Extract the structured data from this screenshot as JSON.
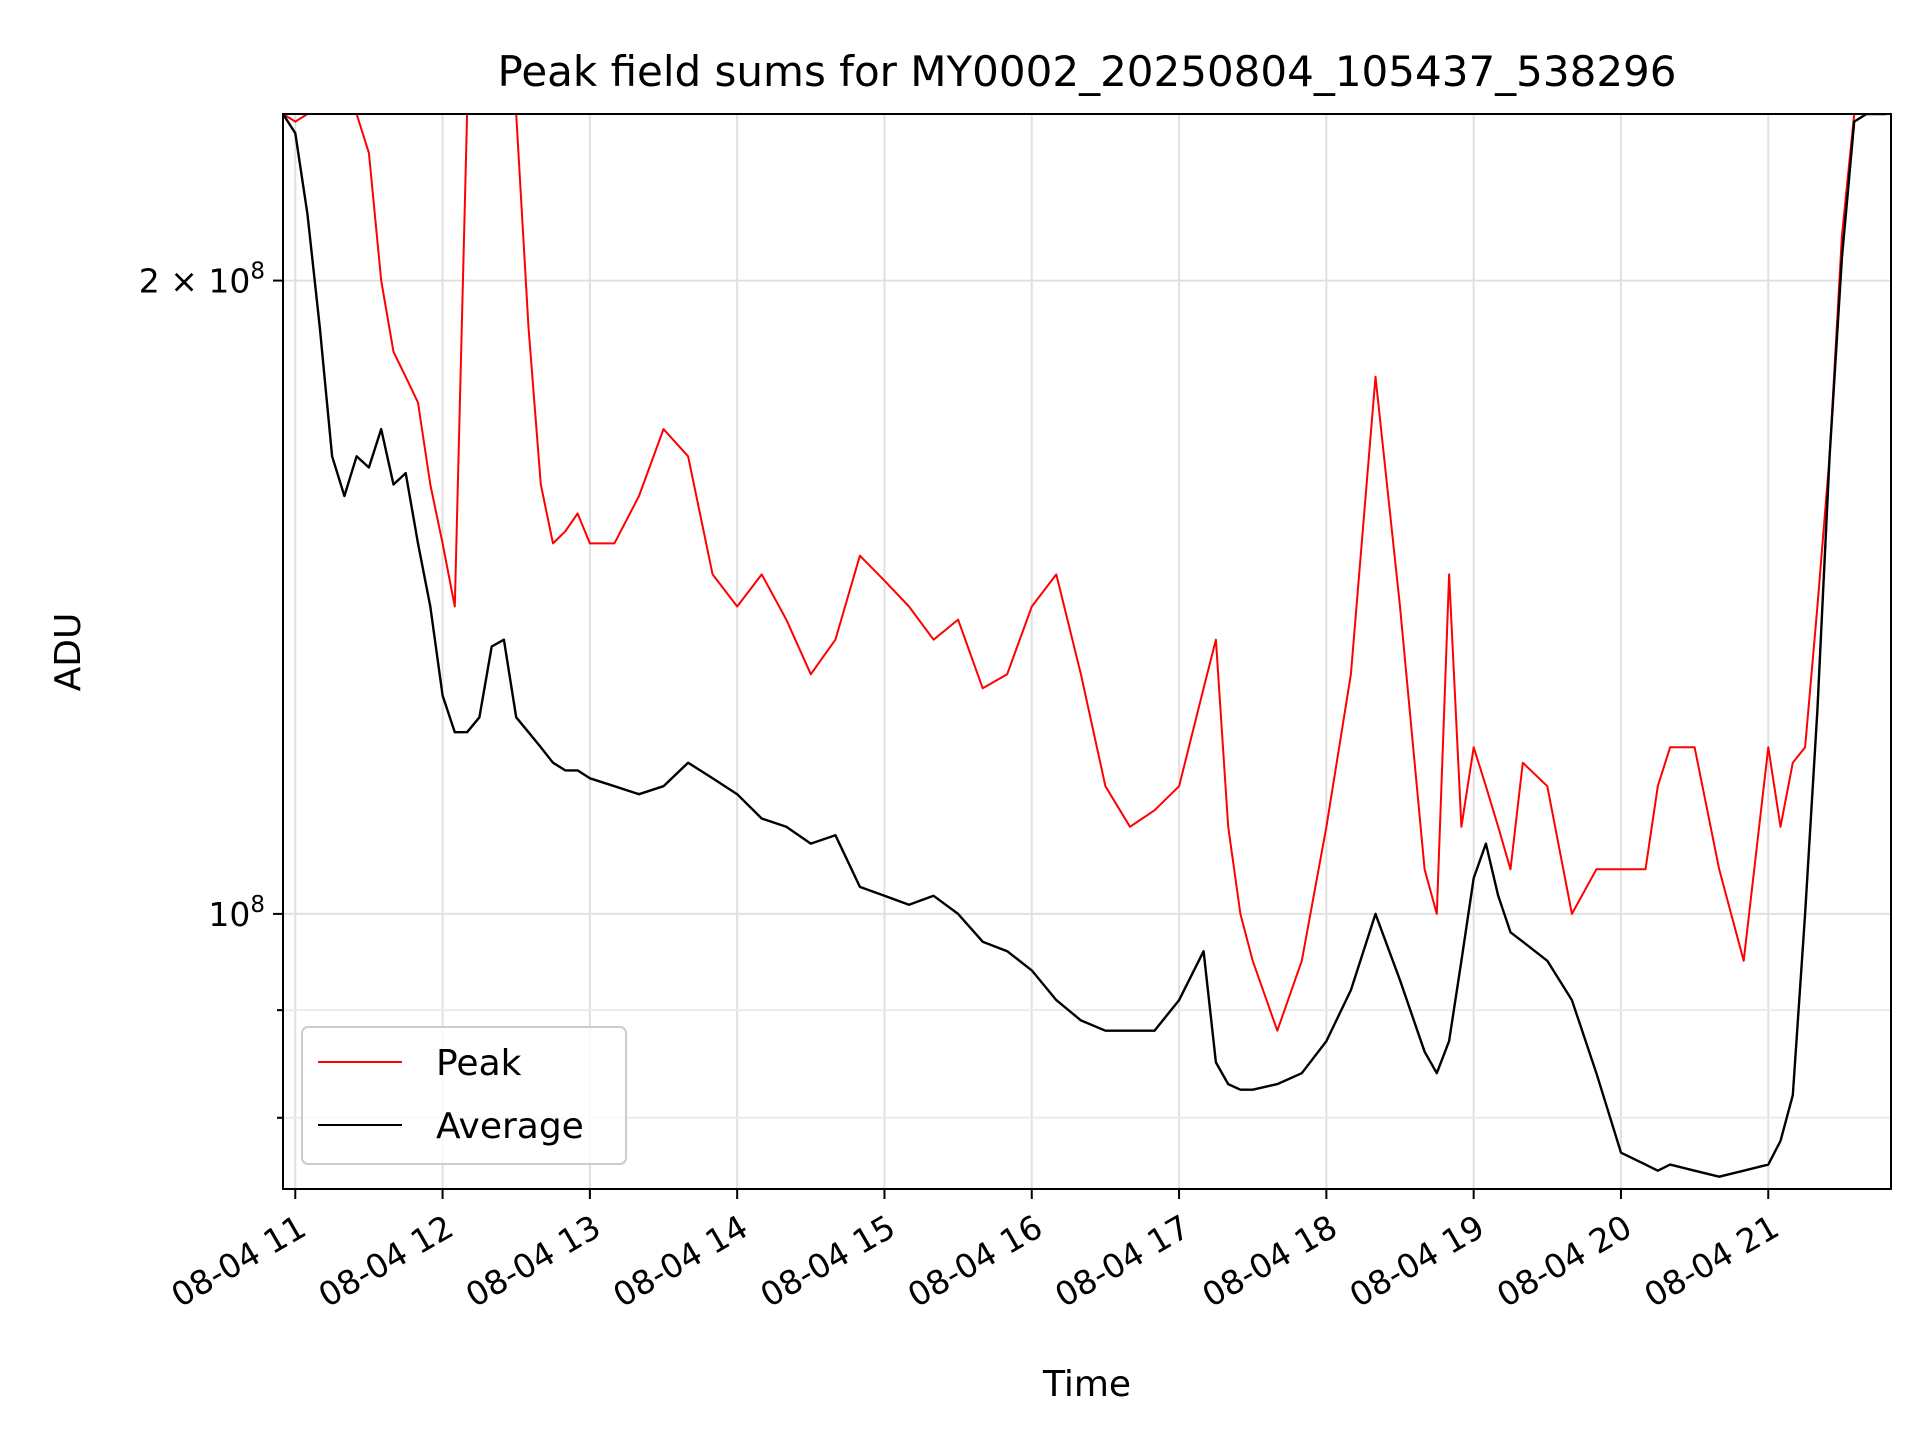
{
  "chart_data": {
    "type": "line",
    "title": "Peak field sums for MY0002_20250804_105437_538296",
    "xlabel": "Time",
    "ylabel": "ADU",
    "yscale": "log",
    "grid": true,
    "legend_position": "lower-left",
    "x_ticks": [
      "08-04 11",
      "08-04 12",
      "08-04 13",
      "08-04 14",
      "08-04 15",
      "08-04 16",
      "08-04 17",
      "08-04 18",
      "08-04 19",
      "08-04 20",
      "08-04 21"
    ],
    "y_ticks": [
      {
        "value": 100000000,
        "base": "10",
        "exp": "8",
        "prefix": ""
      },
      {
        "value": 200000000,
        "base": "10",
        "exp": "8",
        "prefix": "2 × "
      }
    ],
    "xlim": [
      "2025-08-04 10:55",
      "2025-08-04 21:50"
    ],
    "ylim": [
      74000000,
      240000000
    ],
    "series": [
      {
        "name": "Average",
        "color": "#000000",
        "x": [
          "10:55",
          "11:00",
          "11:05",
          "11:10",
          "11:15",
          "11:20",
          "11:25",
          "11:30",
          "11:35",
          "11:40",
          "11:45",
          "11:50",
          "11:55",
          "12:00",
          "12:05",
          "12:10",
          "12:15",
          "12:20",
          "12:25",
          "12:30",
          "12:35",
          "12:40",
          "12:45",
          "12:50",
          "12:55",
          "13:00",
          "13:10",
          "13:20",
          "13:30",
          "13:40",
          "13:50",
          "14:00",
          "14:10",
          "14:20",
          "14:30",
          "14:40",
          "14:50",
          "15:00",
          "15:10",
          "15:20",
          "15:30",
          "15:40",
          "15:50",
          "16:00",
          "16:10",
          "16:20",
          "16:30",
          "16:40",
          "16:50",
          "17:00",
          "17:10",
          "17:15",
          "17:20",
          "17:25",
          "17:30",
          "17:40",
          "17:50",
          "18:00",
          "18:10",
          "18:20",
          "18:30",
          "18:40",
          "18:45",
          "18:50",
          "18:55",
          "19:00",
          "19:05",
          "19:10",
          "19:15",
          "19:20",
          "19:30",
          "19:40",
          "19:50",
          "20:00",
          "20:10",
          "20:15",
          "20:20",
          "20:30",
          "20:40",
          "20:50",
          "21:00",
          "21:05",
          "21:10",
          "21:15",
          "21:20",
          "21:25",
          "21:30",
          "21:35",
          "21:40",
          "21:45",
          "21:48"
        ],
        "y": [
          240000000,
          235000000,
          215000000,
          190000000,
          165000000,
          158000000,
          165000000,
          163000000,
          170000000,
          160000000,
          162000000,
          150000000,
          140000000,
          127000000,
          122000000,
          122000000,
          124000000,
          134000000,
          135000000,
          124000000,
          122000000,
          120000000,
          118000000,
          117000000,
          117000000,
          116000000,
          115000000,
          114000000,
          115000000,
          118000000,
          116000000,
          114000000,
          111000000,
          110000000,
          108000000,
          109000000,
          103000000,
          102000000,
          101000000,
          102000000,
          100000000,
          97000000,
          96000000,
          94000000,
          91000000,
          89000000,
          88000000,
          88000000,
          88000000,
          91000000,
          96000000,
          85000000,
          83000000,
          82500000,
          82500000,
          83000000,
          84000000,
          87000000,
          92000000,
          100000000,
          93000000,
          86000000,
          84000000,
          87000000,
          95000000,
          104000000,
          108000000,
          102000000,
          98000000,
          97000000,
          95000000,
          91000000,
          84000000,
          77000000,
          76000000,
          75500000,
          76000000,
          75500000,
          75000000,
          75500000,
          76000000,
          78000000,
          82000000,
          100000000,
          125000000,
          165000000,
          205000000,
          238000000,
          240000000,
          240000000,
          240000000
        ]
      },
      {
        "name": "Peak",
        "color": "#ff0000",
        "x": [
          "10:55",
          "11:00",
          "11:05",
          "11:10",
          "11:15",
          "11:20",
          "11:25",
          "11:30",
          "11:35",
          "11:40",
          "11:45",
          "11:50",
          "11:55",
          "12:00",
          "12:05",
          "12:10",
          "12:15",
          "12:20",
          "12:25",
          "12:30",
          "12:35",
          "12:40",
          "12:45",
          "12:50",
          "12:55",
          "13:00",
          "13:10",
          "13:20",
          "13:30",
          "13:40",
          "13:50",
          "14:00",
          "14:10",
          "14:20",
          "14:30",
          "14:40",
          "14:50",
          "15:00",
          "15:10",
          "15:20",
          "15:30",
          "15:40",
          "15:50",
          "16:00",
          "16:10",
          "16:20",
          "16:30",
          "16:40",
          "16:50",
          "17:00",
          "17:10",
          "17:15",
          "17:20",
          "17:25",
          "17:30",
          "17:40",
          "17:50",
          "18:00",
          "18:10",
          "18:20",
          "18:30",
          "18:40",
          "18:45",
          "18:50",
          "18:55",
          "19:00",
          "19:05",
          "19:10",
          "19:15",
          "19:20",
          "19:30",
          "19:40",
          "19:50",
          "20:00",
          "20:10",
          "20:15",
          "20:20",
          "20:30",
          "20:40",
          "20:50",
          "21:00",
          "21:05",
          "21:10",
          "21:15",
          "21:20",
          "21:25",
          "21:30",
          "21:35",
          "21:40",
          "21:45",
          "21:48"
        ],
        "y": [
          240000000,
          238000000,
          240000000,
          240000000,
          240000000,
          240000000,
          240000000,
          230000000,
          200000000,
          185000000,
          180000000,
          175000000,
          160000000,
          150000000,
          140000000,
          240000000,
          240000000,
          240000000,
          240000000,
          240000000,
          190000000,
          160000000,
          150000000,
          152000000,
          155000000,
          150000000,
          150000000,
          158000000,
          170000000,
          165000000,
          145000000,
          140000000,
          145000000,
          138000000,
          130000000,
          135000000,
          148000000,
          144000000,
          140000000,
          135000000,
          138000000,
          128000000,
          130000000,
          140000000,
          145000000,
          130000000,
          115000000,
          110000000,
          112000000,
          115000000,
          128000000,
          135000000,
          110000000,
          100000000,
          95000000,
          88000000,
          95000000,
          110000000,
          130000000,
          180000000,
          140000000,
          105000000,
          100000000,
          145000000,
          110000000,
          120000000,
          115000000,
          110000000,
          105000000,
          118000000,
          115000000,
          100000000,
          105000000,
          105000000,
          105000000,
          115000000,
          120000000,
          120000000,
          105000000,
          95000000,
          120000000,
          110000000,
          118000000,
          120000000,
          140000000,
          165000000,
          210000000,
          240000000,
          240000000,
          240000000,
          240000000
        ]
      }
    ]
  }
}
